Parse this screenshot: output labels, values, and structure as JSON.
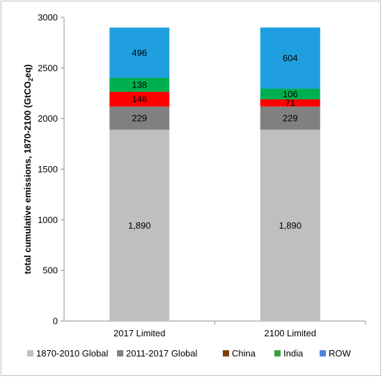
{
  "chart_data": {
    "type": "bar",
    "stacked": true,
    "categories": [
      "2017 Limited",
      "2100 Limited"
    ],
    "series": [
      {
        "name": "1870-2010 Global",
        "color": "#bfbfbf",
        "values": [
          1890,
          1890
        ],
        "labels": [
          "1,890",
          "1,890"
        ]
      },
      {
        "name": "2011-2017 Global",
        "color": "#808080",
        "values": [
          229,
          229
        ],
        "labels": [
          "229",
          "229"
        ]
      },
      {
        "name": "China",
        "color": "#ff0000",
        "values": [
          146,
          71
        ],
        "labels": [
          "146",
          "71"
        ]
      },
      {
        "name": "India",
        "color": "#00b050",
        "values": [
          138,
          106
        ],
        "labels": [
          "138",
          "106"
        ]
      },
      {
        "name": "ROW",
        "color": "#1f9fdf",
        "values": [
          496,
          604
        ],
        "labels": [
          "496",
          "604"
        ]
      }
    ],
    "legend_swatches": [
      "#bfbfbf",
      "#808080",
      "#7f3f00",
      "#3f9f3f",
      "#4f81e0"
    ],
    "ylabel_parts": [
      "total cumulative emissions, 1870-2100 (GtCO",
      "2",
      "eq)"
    ],
    "ylim": [
      0,
      3000
    ],
    "yticks": [
      0,
      500,
      1000,
      1500,
      2000,
      2500,
      3000
    ],
    "ytick_labels": [
      "0",
      "500",
      "1000",
      "1500",
      "2000",
      "2500",
      "3000"
    ],
    "grid": false,
    "legend_position": "bottom"
  }
}
